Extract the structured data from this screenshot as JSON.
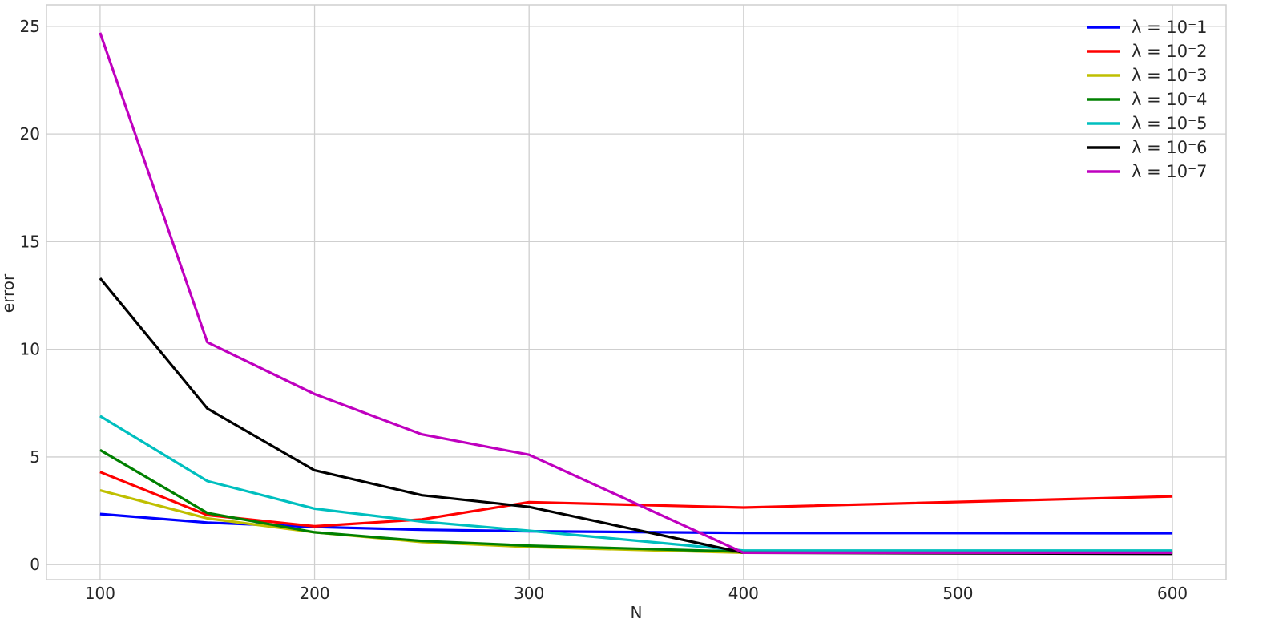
{
  "chart_data": {
    "type": "line",
    "title": "",
    "xlabel": "N",
    "ylabel": "error",
    "xlim": [
      75,
      625
    ],
    "ylim": [
      -0.7,
      26
    ],
    "xticks": [
      100,
      200,
      300,
      400,
      500,
      600
    ],
    "yticks": [
      0,
      5,
      10,
      15,
      20,
      25
    ],
    "x": [
      100,
      150,
      200,
      250,
      300,
      400,
      600
    ],
    "grid": true,
    "legend_position": "top-right",
    "series": [
      {
        "name": "λ = 10⁻1",
        "color": "#0000ff",
        "values": [
          2.35,
          1.95,
          1.75,
          1.62,
          1.55,
          1.47,
          1.46
        ]
      },
      {
        "name": "λ = 10⁻2",
        "color": "#ff0000",
        "values": [
          4.3,
          2.3,
          1.78,
          2.1,
          2.9,
          2.65,
          3.17
        ]
      },
      {
        "name": "λ = 10⁻3",
        "color": "#bfbf00",
        "values": [
          3.45,
          2.15,
          1.5,
          1.05,
          0.82,
          0.55,
          0.55
        ]
      },
      {
        "name": "λ = 10⁻4",
        "color": "#008000",
        "values": [
          5.32,
          2.4,
          1.5,
          1.1,
          0.88,
          0.6,
          0.6
        ]
      },
      {
        "name": "λ = 10⁻5",
        "color": "#00bfbf",
        "values": [
          6.9,
          3.88,
          2.6,
          2.0,
          1.57,
          0.65,
          0.65
        ]
      },
      {
        "name": "λ = 10⁻6",
        "color": "#000000",
        "values": [
          13.3,
          7.25,
          4.38,
          3.22,
          2.68,
          0.55,
          0.5
        ]
      },
      {
        "name": "λ = 10⁻7",
        "color": "#bf00bf",
        "values": [
          24.7,
          10.33,
          7.92,
          6.05,
          5.1,
          0.55,
          0.55
        ]
      }
    ]
  }
}
